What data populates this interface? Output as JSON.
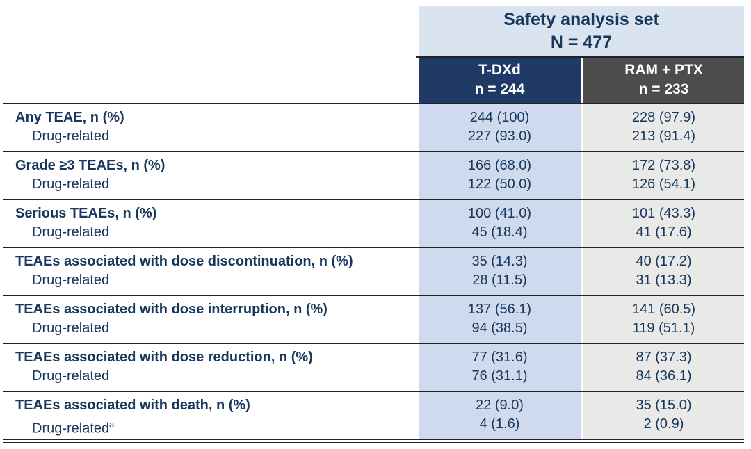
{
  "header": {
    "title": "Safety analysis set",
    "subtitle": "N = 477"
  },
  "columns": [
    {
      "name": "T-DXd",
      "n": "n = 244"
    },
    {
      "name": "RAM + PTX",
      "n": "n = 233"
    }
  ],
  "rows": [
    {
      "label": "Any TEAE, n (%)",
      "sublabel": "Drug-related",
      "tdxd": "244 (100)",
      "tdxd_sub": "227 (93.0)",
      "ram": "228 (97.9)",
      "ram_sub": "213 (91.4)"
    },
    {
      "label": "Grade ≥3 TEAEs, n (%)",
      "sublabel": "Drug-related",
      "tdxd": "166 (68.0)",
      "tdxd_sub": "122 (50.0)",
      "ram": "172 (73.8)",
      "ram_sub": "126 (54.1)"
    },
    {
      "label": "Serious TEAEs, n (%)",
      "sublabel": "Drug-related",
      "tdxd": "100 (41.0)",
      "tdxd_sub": "45 (18.4)",
      "ram": "101 (43.3)",
      "ram_sub": "41 (17.6)"
    },
    {
      "label": "TEAEs associated with dose discontinuation, n (%)",
      "sublabel": "Drug-related",
      "tdxd": "35 (14.3)",
      "tdxd_sub": "28 (11.5)",
      "ram": "40 (17.2)",
      "ram_sub": "31 (13.3)"
    },
    {
      "label": "TEAEs associated with dose interruption, n (%)",
      "sublabel": "Drug-related",
      "tdxd": "137 (56.1)",
      "tdxd_sub": "94 (38.5)",
      "ram": "141 (60.5)",
      "ram_sub": "119 (51.1)"
    },
    {
      "label": "TEAEs associated with dose reduction, n (%)",
      "sublabel": "Drug-related",
      "tdxd": "77 (31.6)",
      "tdxd_sub": "76 (31.1)",
      "ram": "87 (37.3)",
      "ram_sub": "84 (36.1)"
    },
    {
      "label": "TEAEs associated with death, n (%)",
      "sublabel": "Drug-related",
      "sublabel_sup": "a",
      "tdxd": "22 (9.0)",
      "tdxd_sub": "4 (1.6)",
      "ram": "35 (15.0)",
      "ram_sub": "2 (0.9)"
    }
  ],
  "colors": {
    "page_bg": "#ffffff",
    "banner_bg": "#dae4f1",
    "col_a_header_bg": "#1f3a66",
    "col_b_header_bg": "#4d4d4d",
    "col_a_bg": "#cfdaee",
    "col_b_bg": "#e9e9e8",
    "text_navy": "#17375d",
    "line": "#222222"
  }
}
